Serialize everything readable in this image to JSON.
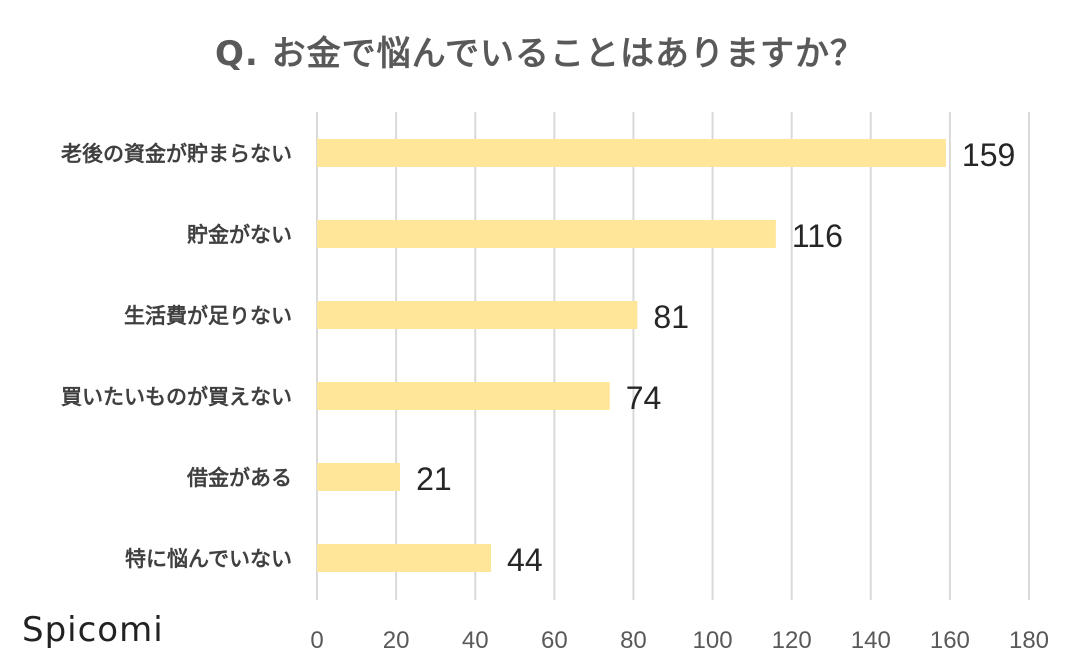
{
  "chart_data": {
    "type": "bar",
    "orientation": "horizontal",
    "title": "Q. お金で悩んでいることはありますか？",
    "categories": [
      "老後の資金が貯まらない",
      "貯金がない",
      "生活費が足りない",
      "買いたいものが買えない",
      "借金がある",
      "特に悩んでいない"
    ],
    "values": [
      159,
      116,
      81,
      74,
      21,
      44
    ],
    "xlim": [
      0,
      180
    ],
    "x_ticks": [
      0,
      20,
      40,
      60,
      80,
      100,
      120,
      140,
      160,
      180
    ],
    "grid": true,
    "data_labels": true,
    "bar_color": "#FFE699",
    "grid_color": "#D9D9D9",
    "text_color": "#404040"
  },
  "brand": {
    "text": "Spicomi"
  }
}
